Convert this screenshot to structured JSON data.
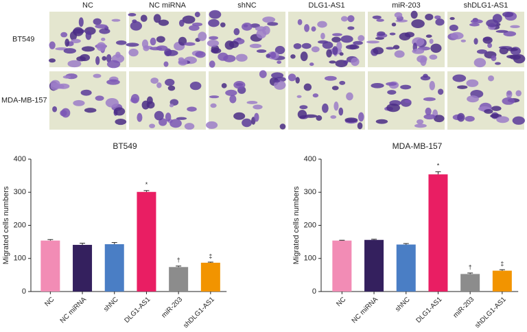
{
  "figure": {
    "columns": [
      "NC",
      "NC miRNA",
      "shNC",
      "DLG1-AS1",
      "miR-203",
      "shDLG1-AS1"
    ],
    "rows": [
      "BT549",
      "MDA-MB-157"
    ]
  },
  "chart_data": [
    {
      "type": "bar",
      "title": "BT549",
      "y_label": "Migrated cells numbers",
      "categories": [
        "NC",
        "NC miRNA",
        "shNC",
        "DLG1-AS1",
        "miR-203",
        "shDLG1-AS1"
      ],
      "values": [
        154,
        141,
        143,
        301,
        74,
        87
      ],
      "errors": [
        3,
        5,
        5,
        4,
        3,
        2
      ],
      "annotations": [
        null,
        null,
        null,
        "*",
        "†",
        "‡"
      ],
      "colors": [
        "#f28cb5",
        "#34205e",
        "#4a7ec5",
        "#e91e63",
        "#8c8c8c",
        "#f29400"
      ],
      "ylim": [
        0,
        400
      ],
      "yticks": [
        0,
        100,
        200,
        300,
        400
      ]
    },
    {
      "type": "bar",
      "title": "MDA-MB-157",
      "y_label": "Migrated cells numbers",
      "categories": [
        "NC",
        "NC miRNA",
        "shNC",
        "DLG1-AS1",
        "miR-203",
        "shDLG1-AS1"
      ],
      "values": [
        154,
        156,
        142,
        354,
        53,
        63
      ],
      "errors": [
        1,
        2,
        3,
        8,
        3,
        3
      ],
      "annotations": [
        null,
        null,
        null,
        "*",
        "†",
        "‡"
      ],
      "colors": [
        "#f28cb5",
        "#34205e",
        "#4a7ec5",
        "#e91e63",
        "#8c8c8c",
        "#f29400"
      ],
      "ylim": [
        0,
        400
      ],
      "yticks": [
        0,
        100,
        200,
        300,
        400
      ]
    }
  ]
}
